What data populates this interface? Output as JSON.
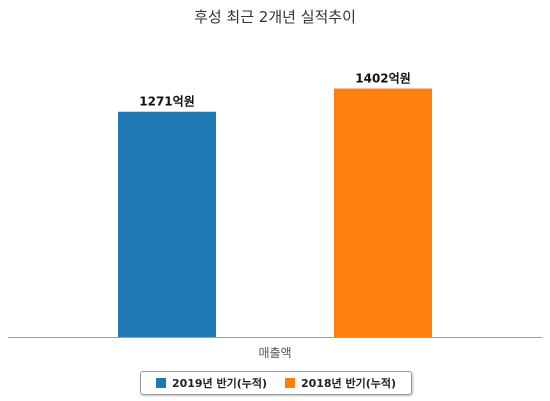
{
  "chart_data": {
    "type": "bar",
    "title": "후성 최근 2개년 실적추이",
    "categories": [
      "매출액"
    ],
    "series": [
      {
        "name": "2019년 반기(누적)",
        "values": [
          1271
        ],
        "label": "1271억원",
        "color": "#1f77b4"
      },
      {
        "name": "2018년 반기(누적)",
        "values": [
          1402
        ],
        "label": "1402억원",
        "color": "#ff7f0e"
      }
    ],
    "xlabel": "",
    "ylabel": "",
    "ylim": [
      0,
      1450
    ],
    "grid": false,
    "legend_position": "bottom"
  }
}
